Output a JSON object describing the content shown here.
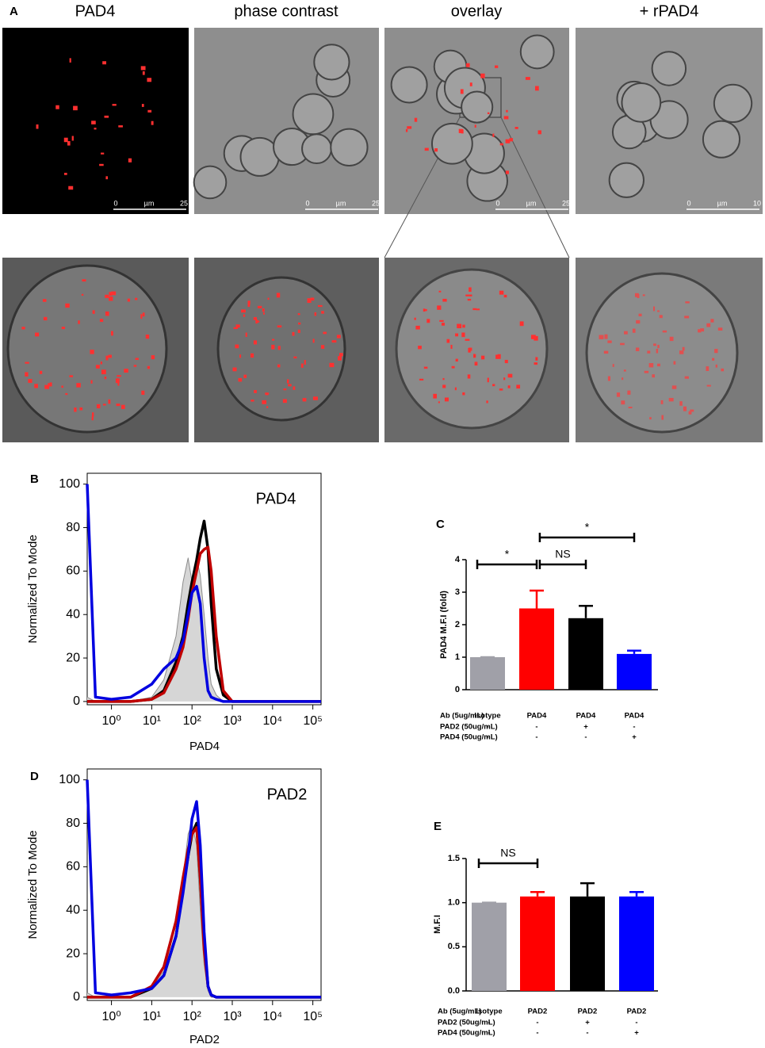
{
  "panel_a": {
    "label": "A",
    "titles": [
      "PAD4",
      "phase contrast",
      "overlay",
      "+ rPAD4"
    ],
    "scale_bars": [
      [
        "0",
        "µm",
        "25"
      ],
      [
        "0",
        "µm",
        "25"
      ],
      [
        "0",
        "µm",
        "25"
      ],
      [
        "0",
        "µm",
        "10"
      ]
    ]
  },
  "chart_data": [
    {
      "type": "line",
      "label": "B",
      "annotation": "PAD4",
      "x_label": "PAD4",
      "y_label": "Normalized To Mode",
      "x_scale": "log",
      "x": [
        0.25,
        0.4,
        1,
        3,
        10,
        20,
        40,
        60,
        80,
        100,
        130,
        160,
        200,
        250,
        300,
        400,
        600,
        1000,
        10000,
        160000
      ],
      "xlim": [
        0.25,
        160000
      ],
      "xticks": [
        {
          "value": 1,
          "label": "10⁰"
        },
        {
          "value": 10,
          "label": "10¹"
        },
        {
          "value": 100,
          "label": "10²"
        },
        {
          "value": 1000,
          "label": "10³"
        },
        {
          "value": 10000,
          "label": "10⁴"
        },
        {
          "value": 100000,
          "label": "10⁵"
        }
      ],
      "ylim": [
        -1.5,
        105
      ],
      "yticks": [
        0,
        20,
        40,
        60,
        80,
        100
      ],
      "series": [
        {
          "color": "#8c8c8c",
          "fill_color": "#d6d6d6",
          "values": [
            2,
            0,
            0,
            0,
            2,
            10,
            30,
            55,
            66,
            55,
            66,
            58,
            40,
            20,
            8,
            3,
            0,
            0,
            0,
            0
          ]
        },
        {
          "color": "#000000",
          "values": [
            0,
            0,
            0,
            0,
            1,
            5,
            18,
            30,
            45,
            55,
            65,
            75,
            83,
            70,
            45,
            15,
            3,
            0,
            0,
            0
          ]
        },
        {
          "color": "#c00000",
          "values": [
            0,
            0,
            0,
            0,
            1,
            4,
            15,
            25,
            38,
            50,
            60,
            68,
            70,
            71,
            60,
            30,
            5,
            0,
            0,
            0
          ]
        },
        {
          "color": "#0000e0",
          "values": [
            100,
            2,
            1,
            2,
            8,
            15,
            20,
            28,
            40,
            50,
            53,
            45,
            20,
            5,
            2,
            1,
            0,
            0,
            0,
            0
          ]
        }
      ]
    },
    {
      "type": "bar",
      "label": "C",
      "y_label": "PAD4 M.F.I (fold)",
      "category_header": "Ab (5ug/mL)",
      "categories": [
        "Isotype",
        "PAD4",
        "PAD4",
        "PAD4"
      ],
      "values": [
        1,
        2.5,
        2.2,
        1.1
      ],
      "errors": [
        0,
        0.55,
        0.38,
        0.1
      ],
      "colors": [
        "#a0a0a8",
        "#ff0000",
        "#000000",
        "#0000ff"
      ],
      "ylim": [
        0,
        4
      ],
      "yticks": [
        0,
        1,
        2,
        3,
        4
      ],
      "conditions": [
        {
          "label": "PAD2 (50ug/mL)",
          "values": [
            "-",
            "-",
            "+",
            "-"
          ]
        },
        {
          "label": "PAD4 (50ug/mL)",
          "values": [
            "-",
            "-",
            "-",
            "+"
          ]
        }
      ],
      "significance": [
        {
          "from": 0,
          "to": 1,
          "label": "*"
        },
        {
          "from": 1,
          "to": 2,
          "label": "NS"
        },
        {
          "from": 1,
          "to": 3,
          "label": "*"
        }
      ]
    },
    {
      "type": "line",
      "label": "D",
      "annotation": "PAD2",
      "x_label": "PAD2",
      "y_label": "Normalized To Mode",
      "x_scale": "log",
      "x": [
        0.25,
        0.4,
        1,
        3,
        10,
        20,
        40,
        60,
        80,
        100,
        130,
        160,
        200,
        250,
        300,
        400,
        600,
        1000,
        10000,
        160000
      ],
      "xlim": [
        0.25,
        160000
      ],
      "xticks": [
        {
          "value": 1,
          "label": "10⁰"
        },
        {
          "value": 10,
          "label": "10¹"
        },
        {
          "value": 100,
          "label": "10²"
        },
        {
          "value": 1000,
          "label": "10³"
        },
        {
          "value": 10000,
          "label": "10⁴"
        },
        {
          "value": 100000,
          "label": "10⁵"
        }
      ],
      "ylim": [
        -1.5,
        105
      ],
      "yticks": [
        0,
        20,
        40,
        60,
        80,
        100
      ],
      "series": [
        {
          "color": "#8c8c8c",
          "fill_color": "#d6d6d6",
          "values": [
            2,
            0,
            0,
            0,
            5,
            12,
            30,
            55,
            75,
            80,
            70,
            40,
            15,
            3,
            0,
            0,
            0,
            0,
            0,
            0
          ]
        },
        {
          "color": "#000000",
          "values": [
            0,
            0,
            0,
            0,
            4,
            10,
            28,
            50,
            65,
            75,
            80,
            55,
            25,
            5,
            1,
            0,
            0,
            0,
            0,
            0
          ]
        },
        {
          "color": "#c00000",
          "values": [
            0,
            0,
            0,
            0,
            5,
            14,
            35,
            55,
            68,
            75,
            78,
            55,
            22,
            5,
            1,
            0,
            0,
            0,
            0,
            0
          ]
        },
        {
          "color": "#0000e0",
          "values": [
            100,
            2,
            1,
            2,
            4,
            10,
            28,
            48,
            65,
            82,
            90,
            70,
            30,
            5,
            1,
            0,
            0,
            0,
            0,
            0
          ]
        }
      ]
    },
    {
      "type": "bar",
      "label": "E",
      "y_label": "M.F.I",
      "category_header": "Ab (5ug/mL)",
      "categories": [
        "Isotype",
        "PAD2",
        "PAD2",
        "PAD2"
      ],
      "values": [
        1,
        1.07,
        1.07,
        1.07
      ],
      "errors": [
        0,
        0.05,
        0.15,
        0.05
      ],
      "colors": [
        "#a0a0a8",
        "#ff0000",
        "#000000",
        "#0000ff"
      ],
      "ylim": [
        0,
        1.5
      ],
      "yticks": [
        {
          "value": 0,
          "label": "0.0"
        },
        {
          "value": 0.5,
          "label": "0.5"
        },
        {
          "value": 1,
          "label": "1.0"
        },
        {
          "value": 1.5,
          "label": "1.5"
        }
      ],
      "conditions": [
        {
          "label": "PAD2 (50ug/mL)",
          "values": [
            "-",
            "-",
            "+",
            "-"
          ]
        },
        {
          "label": "PAD4 (50ug/mL)",
          "values": [
            "-",
            "-",
            "-",
            "+"
          ]
        }
      ],
      "significance": [
        {
          "from": 0,
          "to": 1,
          "label": "NS"
        }
      ]
    }
  ]
}
